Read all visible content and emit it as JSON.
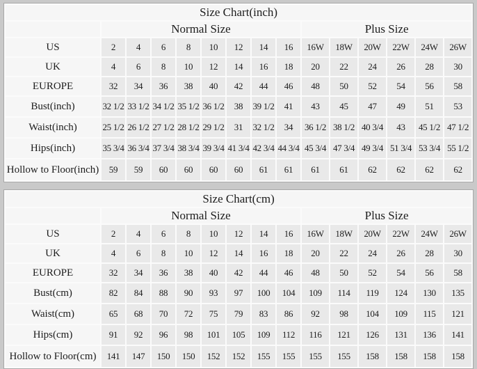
{
  "colors": {
    "page_background": "#c9c9c9",
    "header_cell_background": "#f6f6f6",
    "data_cell_background": "#e9e9e9",
    "grid_gap": "#fbfbfb",
    "text": "#1c1c1c"
  },
  "chart_data": [
    {
      "type": "table",
      "title": "Size Chart(inch)",
      "group_headers": [
        "Normal Size",
        "Plus Size"
      ],
      "normal_size_columns": 8,
      "plus_size_columns": 6,
      "rows": [
        {
          "label": "US",
          "values": [
            "2",
            "4",
            "6",
            "8",
            "10",
            "12",
            "14",
            "16",
            "16W",
            "18W",
            "20W",
            "22W",
            "24W",
            "26W"
          ]
        },
        {
          "label": "UK",
          "values": [
            "4",
            "6",
            "8",
            "10",
            "12",
            "14",
            "16",
            "18",
            "20",
            "22",
            "24",
            "26",
            "28",
            "30"
          ]
        },
        {
          "label": "EUROPE",
          "values": [
            "32",
            "34",
            "36",
            "38",
            "40",
            "42",
            "44",
            "46",
            "48",
            "50",
            "52",
            "54",
            "56",
            "58"
          ]
        },
        {
          "label": "Bust(inch)",
          "values": [
            "32 1/2",
            "33 1/2",
            "34 1/2",
            "35 1/2",
            "36 1/2",
            "38",
            "39 1/2",
            "41",
            "43",
            "45",
            "47",
            "49",
            "51",
            "53"
          ]
        },
        {
          "label": "Waist(inch)",
          "values": [
            "25 1/2",
            "26 1/2",
            "27 1/2",
            "28 1/2",
            "29 1/2",
            "31",
            "32 1/2",
            "34",
            "36 1/2",
            "38 1/2",
            "40 3/4",
            "43",
            "45 1/2",
            "47 1/2"
          ]
        },
        {
          "label": "Hips(inch)",
          "values": [
            "35 3/4",
            "36 3/4",
            "37 3/4",
            "38 3/4",
            "39 3/4",
            "41 3/4",
            "42 3/4",
            "44 3/4",
            "45 3/4",
            "47 3/4",
            "49 3/4",
            "51 3/4",
            "53 3/4",
            "55 1/2"
          ]
        },
        {
          "label": "Hollow to Floor(inch)",
          "values": [
            "59",
            "59",
            "60",
            "60",
            "60",
            "60",
            "61",
            "61",
            "61",
            "61",
            "62",
            "62",
            "62",
            "62"
          ]
        }
      ]
    },
    {
      "type": "table",
      "title": "Size Chart(cm)",
      "group_headers": [
        "Normal Size",
        "Plus Size"
      ],
      "normal_size_columns": 8,
      "plus_size_columns": 6,
      "rows": [
        {
          "label": "US",
          "values": [
            "2",
            "4",
            "6",
            "8",
            "10",
            "12",
            "14",
            "16",
            "16W",
            "18W",
            "20W",
            "22W",
            "24W",
            "26W"
          ]
        },
        {
          "label": "UK",
          "values": [
            "4",
            "6",
            "8",
            "10",
            "12",
            "14",
            "16",
            "18",
            "20",
            "22",
            "24",
            "26",
            "28",
            "30"
          ]
        },
        {
          "label": "EUROPE",
          "values": [
            "32",
            "34",
            "36",
            "38",
            "40",
            "42",
            "44",
            "46",
            "48",
            "50",
            "52",
            "54",
            "56",
            "58"
          ]
        },
        {
          "label": "Bust(cm)",
          "values": [
            "82",
            "84",
            "88",
            "90",
            "93",
            "97",
            "100",
            "104",
            "109",
            "114",
            "119",
            "124",
            "130",
            "135"
          ]
        },
        {
          "label": "Waist(cm)",
          "values": [
            "65",
            "68",
            "70",
            "72",
            "75",
            "79",
            "83",
            "86",
            "92",
            "98",
            "104",
            "109",
            "115",
            "121"
          ]
        },
        {
          "label": "Hips(cm)",
          "values": [
            "91",
            "92",
            "96",
            "98",
            "101",
            "105",
            "109",
            "112",
            "116",
            "121",
            "126",
            "131",
            "136",
            "141"
          ]
        },
        {
          "label": "Hollow to Floor(cm)",
          "values": [
            "141",
            "147",
            "150",
            "150",
            "152",
            "152",
            "155",
            "155",
            "155",
            "155",
            "158",
            "158",
            "158",
            "158"
          ]
        }
      ]
    }
  ]
}
